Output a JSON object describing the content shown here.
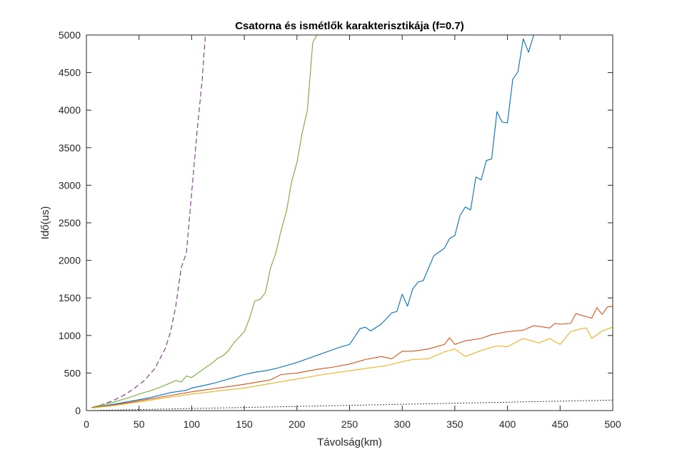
{
  "chart_data": {
    "type": "line",
    "title": "Csatorna és ismétlők karakterisztikája (f=0.7)",
    "xlabel": "Távolság(km)",
    "ylabel": "Idő(us)",
    "xlim": [
      0,
      500
    ],
    "ylim": [
      0,
      5000
    ],
    "xticks": [
      "0",
      "50",
      "100",
      "150",
      "200",
      "250",
      "300",
      "350",
      "400",
      "450",
      "500"
    ],
    "yticks": [
      "0",
      "500",
      "1000",
      "1500",
      "2000",
      "2500",
      "3000",
      "3500",
      "4000",
      "4500",
      "5000"
    ],
    "grid": false,
    "legend": "none",
    "series": [
      {
        "color": "#7E2F8E",
        "style": "dashed",
        "x": [
          5,
          15,
          25,
          35,
          45,
          55,
          65,
          75,
          80,
          85,
          90,
          95,
          100,
          105,
          110,
          113
        ],
        "y": [
          40,
          80,
          130,
          200,
          290,
          400,
          560,
          830,
          1050,
          1400,
          1900,
          2100,
          2900,
          3700,
          4400,
          5000
        ]
      },
      {
        "color": "#77AC30",
        "style": "solid",
        "x": [
          5,
          10,
          20,
          30,
          40,
          50,
          60,
          70,
          80,
          85,
          90,
          95,
          100,
          110,
          120,
          125,
          130,
          135,
          140,
          150,
          155,
          160,
          165,
          170,
          175,
          180,
          185,
          190,
          195,
          200,
          205,
          210,
          215,
          219
        ],
        "y": [
          40,
          60,
          90,
          130,
          170,
          220,
          260,
          310,
          370,
          400,
          380,
          460,
          440,
          540,
          640,
          700,
          730,
          800,
          900,
          1050,
          1230,
          1460,
          1480,
          1570,
          1900,
          2100,
          2400,
          2650,
          3050,
          3300,
          3700,
          4000,
          4900,
          5000
        ]
      },
      {
        "color": "#0072BD",
        "style": "solid",
        "x": [
          5,
          20,
          40,
          60,
          80,
          95,
          100,
          110,
          120,
          130,
          140,
          150,
          160,
          170,
          180,
          190,
          200,
          210,
          220,
          230,
          240,
          250,
          260,
          265,
          270,
          280,
          290,
          295,
          300,
          305,
          310,
          315,
          320,
          330,
          335,
          340,
          345,
          350,
          355,
          360,
          365,
          370,
          375,
          380,
          385,
          390,
          395,
          400,
          405,
          410,
          415,
          420,
          425
        ],
        "y": [
          40,
          70,
          120,
          170,
          240,
          270,
          300,
          330,
          360,
          400,
          440,
          480,
          510,
          530,
          560,
          600,
          640,
          690,
          740,
          790,
          840,
          880,
          1090,
          1110,
          1060,
          1150,
          1300,
          1320,
          1550,
          1390,
          1620,
          1710,
          1730,
          2060,
          2110,
          2160,
          2290,
          2330,
          2600,
          2710,
          2670,
          3110,
          3070,
          3330,
          3350,
          3980,
          3840,
          3830,
          4410,
          4510,
          4950,
          4770,
          5000
        ]
      },
      {
        "color": "#D95319",
        "style": "solid",
        "x": [
          5,
          25,
          50,
          75,
          100,
          125,
          150,
          175,
          185,
          200,
          220,
          235,
          250,
          265,
          280,
          290,
          300,
          310,
          325,
          340,
          345,
          350,
          360,
          375,
          385,
          400,
          415,
          425,
          440,
          445,
          450,
          460,
          465,
          475,
          480,
          485,
          490,
          495,
          500
        ],
        "y": [
          40,
          70,
          130,
          190,
          250,
          300,
          350,
          410,
          480,
          500,
          550,
          580,
          620,
          680,
          720,
          690,
          790,
          790,
          820,
          880,
          970,
          880,
          930,
          960,
          1010,
          1050,
          1070,
          1130,
          1100,
          1160,
          1150,
          1160,
          1290,
          1250,
          1230,
          1370,
          1280,
          1380,
          1390
        ]
      },
      {
        "color": "#EDB120",
        "style": "solid",
        "x": [
          5,
          25,
          50,
          75,
          100,
          125,
          150,
          175,
          200,
          225,
          250,
          275,
          285,
          300,
          310,
          325,
          340,
          350,
          360,
          375,
          390,
          400,
          415,
          430,
          440,
          450,
          460,
          470,
          475,
          480,
          490,
          500
        ],
        "y": [
          35,
          65,
          115,
          170,
          220,
          260,
          300,
          360,
          420,
          480,
          530,
          580,
          600,
          650,
          680,
          690,
          780,
          820,
          720,
          800,
          860,
          850,
          960,
          900,
          960,
          880,
          1050,
          1090,
          1100,
          960,
          1060,
          1110
        ]
      },
      {
        "color": "#000000",
        "style": "dotted",
        "x": [
          5,
          500
        ],
        "y": [
          1,
          140
        ]
      }
    ]
  }
}
